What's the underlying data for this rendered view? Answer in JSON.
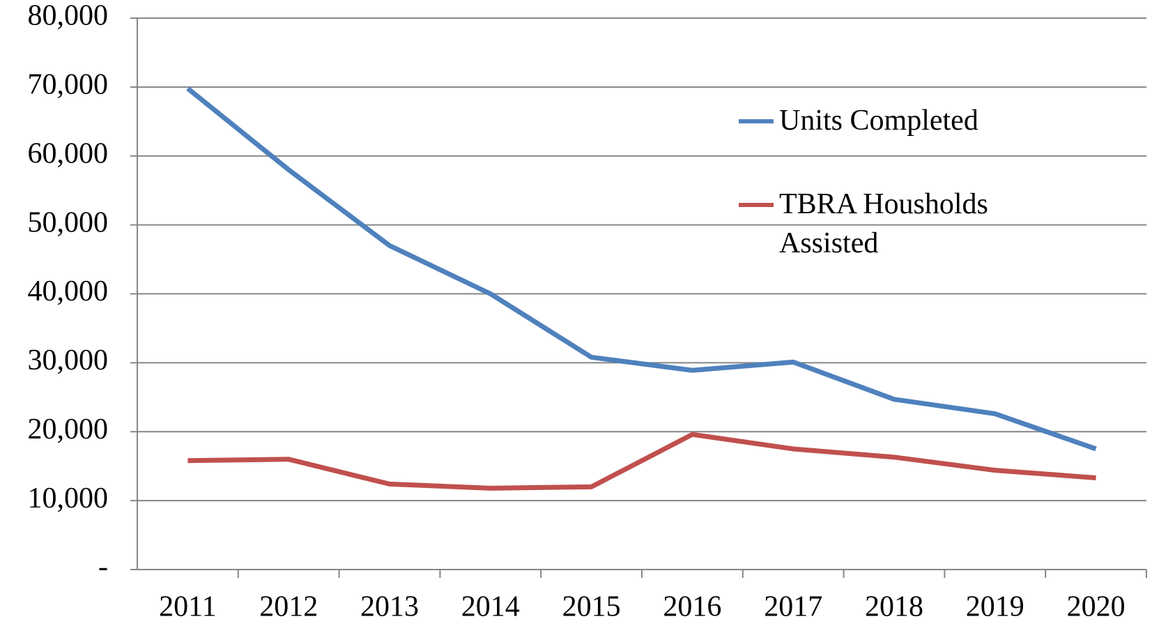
{
  "chart_data": {
    "type": "line",
    "categories": [
      "2011",
      "2012",
      "2013",
      "2014",
      "2015",
      "2016",
      "2017",
      "2018",
      "2019",
      "2020"
    ],
    "series": [
      {
        "name": "Units Completed",
        "color": "#4f81bd",
        "values": [
          69800,
          58000,
          47000,
          40000,
          30800,
          28900,
          30100,
          24700,
          22600,
          17500
        ]
      },
      {
        "name": "TBRA Housholds Assisted",
        "color": "#c0504d",
        "values": [
          15800,
          16000,
          12400,
          11800,
          12000,
          19600,
          17500,
          16300,
          14400,
          13300
        ]
      }
    ],
    "ylim": [
      0,
      80000
    ],
    "yticks": [
      {
        "value": 0,
        "label": "-"
      },
      {
        "value": 10000,
        "label": "10,000"
      },
      {
        "value": 20000,
        "label": "20,000"
      },
      {
        "value": 30000,
        "label": "30,000"
      },
      {
        "value": 40000,
        "label": "40,000"
      },
      {
        "value": 50000,
        "label": "50,000"
      },
      {
        "value": 60000,
        "label": "60,000"
      },
      {
        "value": 70000,
        "label": "70,000"
      },
      {
        "value": 80000,
        "label": "80,000"
      }
    ],
    "grid": true
  }
}
